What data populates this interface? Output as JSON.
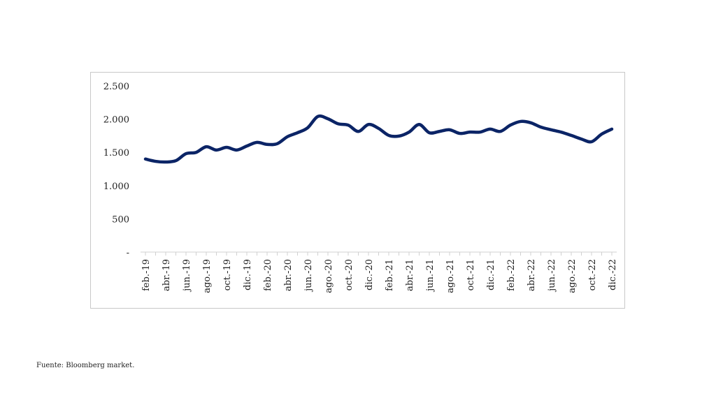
{
  "chart_data": {
    "type": "line",
    "categories": [
      "feb.-19",
      null,
      "abr.-19",
      null,
      "jun.-19",
      null,
      "ago.-19",
      null,
      "oct.-19",
      null,
      "dic.-19",
      null,
      "feb.-20",
      null,
      "abr.-20",
      null,
      "jun.-20",
      null,
      "ago.-20",
      null,
      "oct.-20",
      null,
      "dic.-20",
      null,
      "feb.-21",
      null,
      "abr.-21",
      null,
      "jun.-21",
      null,
      "ago.-21",
      null,
      "oct.-21",
      null,
      "dic.-21",
      null,
      "feb.-22",
      null,
      "abr.-22",
      null,
      "jun.-22",
      null,
      "ago.-22",
      null,
      "oct.-22",
      null,
      "dic.-22"
    ],
    "series": [
      {
        "color": "#0b2466",
        "values": [
          1400,
          1365,
          1355,
          1375,
          1480,
          1500,
          1585,
          1535,
          1575,
          1535,
          1595,
          1650,
          1620,
          1630,
          1735,
          1795,
          1870,
          2040,
          2005,
          1930,
          1910,
          1815,
          1920,
          1860,
          1755,
          1745,
          1805,
          1920,
          1795,
          1815,
          1840,
          1785,
          1805,
          1805,
          1850,
          1815,
          1910,
          1965,
          1945,
          1880,
          1840,
          1805,
          1755,
          1700,
          1660,
          1775,
          1850
        ]
      }
    ],
    "ylim": [
      0,
      2500
    ],
    "yticks": [
      {
        "value": 0,
        "label": "-"
      },
      500,
      {
        "value": 1000,
        "label": "1.000"
      },
      {
        "value": 1500,
        "label": "1.500"
      },
      {
        "value": 2000,
        "label": "2.000"
      },
      {
        "value": 2500,
        "label": "2.500"
      }
    ],
    "source": "Fuente: Bloomberg market."
  }
}
